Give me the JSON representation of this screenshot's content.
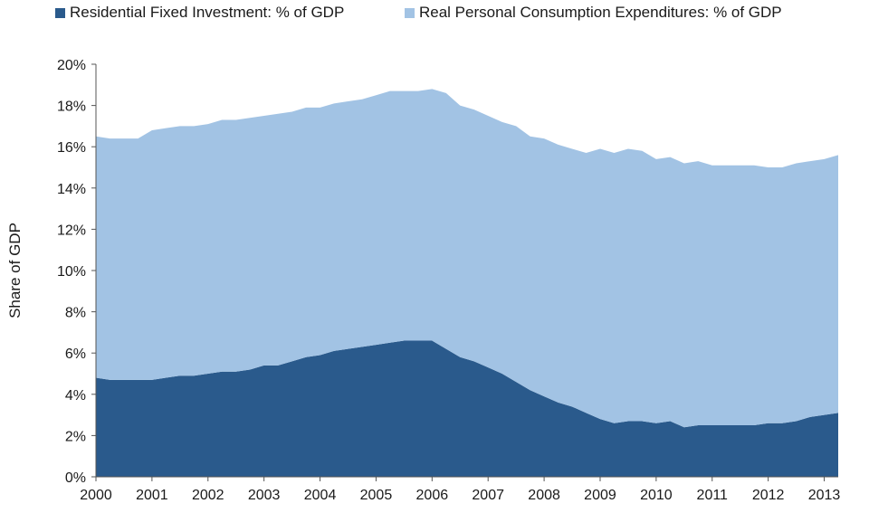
{
  "chart_data": {
    "type": "area",
    "stacked": true,
    "title": "",
    "xlabel": "",
    "ylabel": "Share of GDP",
    "ylim": [
      0,
      20
    ],
    "xlim": [
      2000,
      2013.25
    ],
    "y_ticks": [
      "0%",
      "2%",
      "4%",
      "6%",
      "8%",
      "10%",
      "12%",
      "14%",
      "16%",
      "18%",
      "20%"
    ],
    "x_ticks": [
      "2000",
      "2001",
      "2002",
      "2003",
      "2004",
      "2005",
      "2006",
      "2007",
      "2008",
      "2009",
      "2010",
      "2011",
      "2012",
      "2013"
    ],
    "legend_position": "top",
    "x": [
      2000.0,
      2000.25,
      2000.5,
      2000.75,
      2001.0,
      2001.25,
      2001.5,
      2001.75,
      2002.0,
      2002.25,
      2002.5,
      2002.75,
      2003.0,
      2003.25,
      2003.5,
      2003.75,
      2004.0,
      2004.25,
      2004.5,
      2004.75,
      2005.0,
      2005.25,
      2005.5,
      2005.75,
      2006.0,
      2006.25,
      2006.5,
      2006.75,
      2007.0,
      2007.25,
      2007.5,
      2007.75,
      2008.0,
      2008.25,
      2008.5,
      2008.75,
      2009.0,
      2009.25,
      2009.5,
      2009.75,
      2010.0,
      2010.25,
      2010.5,
      2010.75,
      2011.0,
      2011.25,
      2011.5,
      2011.75,
      2012.0,
      2012.25,
      2012.5,
      2012.75,
      2013.0,
      2013.25
    ],
    "series": [
      {
        "name": "Residential Fixed Investment: % of GDP",
        "color": "#2a5a8c",
        "values": [
          4.8,
          4.7,
          4.7,
          4.7,
          4.7,
          4.8,
          4.9,
          4.9,
          5.0,
          5.1,
          5.1,
          5.2,
          5.4,
          5.4,
          5.6,
          5.8,
          5.9,
          6.1,
          6.2,
          6.3,
          6.4,
          6.5,
          6.6,
          6.6,
          6.6,
          6.2,
          5.8,
          5.6,
          5.3,
          5.0,
          4.6,
          4.2,
          3.9,
          3.6,
          3.4,
          3.1,
          2.8,
          2.6,
          2.7,
          2.7,
          2.6,
          2.7,
          2.4,
          2.5,
          2.5,
          2.5,
          2.5,
          2.5,
          2.6,
          2.6,
          2.7,
          2.9,
          3.0,
          3.1
        ]
      },
      {
        "name": "Real Personal Consumption Expenditures: % of GDP",
        "color": "#a2c3e4",
        "values": [
          11.7,
          11.7,
          11.7,
          11.7,
          12.1,
          12.1,
          12.1,
          12.1,
          12.1,
          12.2,
          12.2,
          12.2,
          12.1,
          12.2,
          12.1,
          12.1,
          12.0,
          12.0,
          12.0,
          12.0,
          12.1,
          12.2,
          12.1,
          12.1,
          12.2,
          12.4,
          12.2,
          12.2,
          12.2,
          12.2,
          12.4,
          12.3,
          12.5,
          12.5,
          12.5,
          12.6,
          13.1,
          13.1,
          13.2,
          13.1,
          12.8,
          12.8,
          12.8,
          12.8,
          12.6,
          12.6,
          12.6,
          12.6,
          12.4,
          12.4,
          12.5,
          12.4,
          12.4,
          12.5
        ]
      }
    ]
  }
}
